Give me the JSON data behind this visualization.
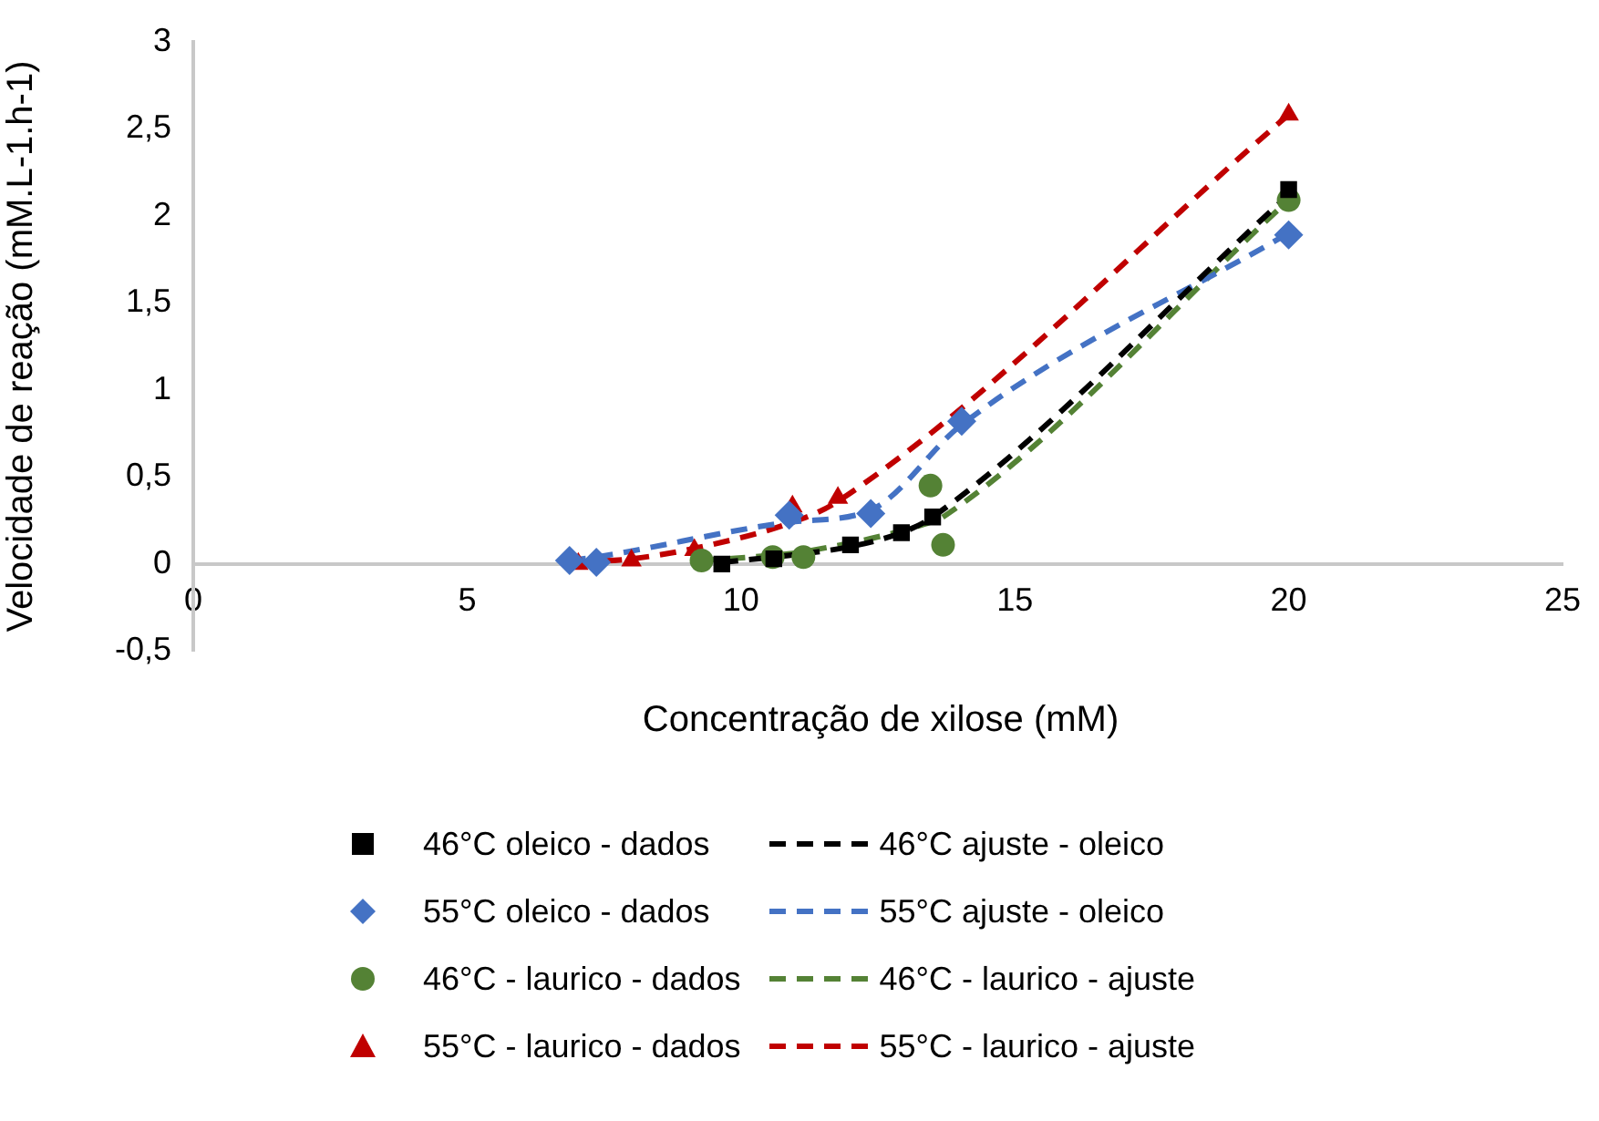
{
  "chart_data": {
    "type": "scatter",
    "xlabel": "Concentração de xilose (mM)",
    "ylabel": "Velocidade de reação (mM.L-1.h-1)",
    "xlim": [
      0,
      25
    ],
    "xticks": [
      0,
      5,
      10,
      15,
      20,
      25
    ],
    "ylim": [
      -0.5,
      3
    ],
    "yticks": [
      {
        "value": -0.5,
        "label": "-0,5"
      },
      0,
      {
        "value": 0.5,
        "label": "0,5"
      },
      1,
      {
        "value": 1.5,
        "label": "1,5"
      },
      2,
      {
        "value": 2.5,
        "label": "2,5"
      },
      3
    ],
    "grid": false,
    "legend": "bottom",
    "series": [
      {
        "name": "46°C oleico - dados",
        "marker": "square",
        "color": "#000000",
        "x": [
          9.65,
          10.6,
          12.0,
          12.93,
          13.5,
          20
        ],
        "values": [
          0,
          0.03,
          0.11,
          0.18,
          0.27,
          2.15
        ]
      },
      {
        "name": "46°C ajuste - oleico",
        "type": "line",
        "marker": "none",
        "line_style": "dashed",
        "color": "#000000",
        "x": [
          9.65,
          10.6,
          12.0,
          12.93,
          13.5,
          20
        ],
        "values": [
          0.01,
          0.04,
          0.1,
          0.18,
          0.27,
          2.12
        ]
      },
      {
        "name": "55°C oleico - dados",
        "marker": "diamond",
        "color": "#4472c4",
        "x": [
          6.87,
          7.36,
          10.88,
          12.37,
          14.03,
          20
        ],
        "values": [
          0.02,
          0.01,
          0.28,
          0.29,
          0.82,
          1.89
        ]
      },
      {
        "name": "55°C ajuste - oleico",
        "type": "line",
        "marker": "none",
        "line_style": "dashed",
        "color": "#4472c4",
        "x": [
          6.87,
          7.36,
          10.88,
          12.37,
          14.03,
          20
        ],
        "values": [
          0.02,
          0.04,
          0.24,
          0.31,
          0.8,
          1.9
        ]
      },
      {
        "name": "46°C - laurico - dados",
        "marker": "circle",
        "color": "#548235",
        "x": [
          9.28,
          10.58,
          11.14,
          13.46,
          13.69,
          20
        ],
        "values": [
          0.02,
          0.04,
          0.04,
          0.45,
          0.11,
          2.09
        ]
      },
      {
        "name": "46°C - laurico - ajuste",
        "type": "line",
        "marker": "none",
        "line_style": "dashed",
        "color": "#548235",
        "x": [
          9.28,
          10.58,
          11.14,
          13.46,
          13.69,
          20
        ],
        "values": [
          0.02,
          0.05,
          0.07,
          0.24,
          0.27,
          2.09
        ]
      },
      {
        "name": "55°C - laurico - dados",
        "marker": "triangle",
        "color": "#c00000",
        "x": [
          7.03,
          8.0,
          9.15,
          10.94,
          11.77,
          20
        ],
        "values": [
          0,
          0.02,
          0.08,
          0.33,
          0.38,
          2.58
        ]
      },
      {
        "name": "55°C - laurico - ajuste",
        "type": "line",
        "marker": "none",
        "line_style": "dashed",
        "color": "#c00000",
        "x": [
          7.03,
          8.0,
          9.15,
          10.94,
          11.77,
          20
        ],
        "values": [
          0.01,
          0.03,
          0.09,
          0.24,
          0.36,
          2.58
        ]
      }
    ]
  }
}
